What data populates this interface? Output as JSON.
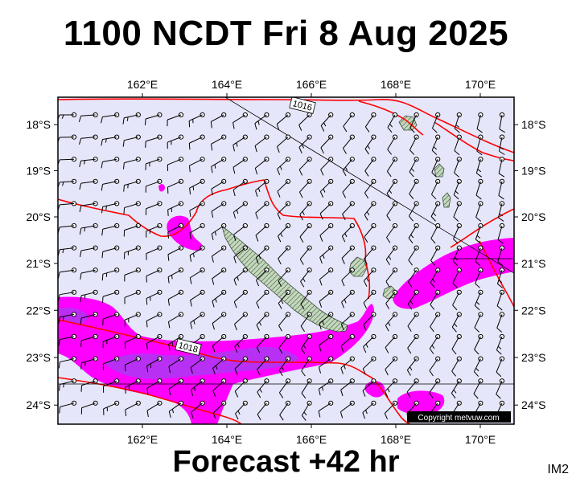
{
  "header": {
    "title": "1100 NCDT Fri 8 Aug 2025"
  },
  "footer": {
    "forecast": "Forecast +42 hr",
    "code": "IM2"
  },
  "map": {
    "projection": "mercator",
    "lon_range": [
      160.0,
      170.8
    ],
    "lat_range": [
      -24.4,
      -17.4
    ],
    "background_color": "#e6e6fa",
    "land_color": "#c9d9c0",
    "isobar_color": "#ff0000",
    "rain_colors": {
      "light": "#ff00ff",
      "heavy": "#a040f0"
    },
    "copyright": "Copyright metvuw.com",
    "lon_ticks": [
      {
        "value": 162,
        "label": "162°E"
      },
      {
        "value": 164,
        "label": "164°E"
      },
      {
        "value": 166,
        "label": "166°E"
      },
      {
        "value": 168,
        "label": "168°E"
      },
      {
        "value": 170,
        "label": "170°E"
      }
    ],
    "lat_ticks": [
      {
        "value": -18,
        "label": "18°S"
      },
      {
        "value": -19,
        "label": "19°S"
      },
      {
        "value": -20,
        "label": "20°S"
      },
      {
        "value": -21,
        "label": "21°S"
      },
      {
        "value": -22,
        "label": "22°S"
      },
      {
        "value": -23,
        "label": "23°S"
      },
      {
        "value": -24,
        "label": "24°S"
      }
    ],
    "isobar_labels": [
      {
        "text": "1016",
        "lon": 166.2,
        "lat": -17.6
      },
      {
        "text": "1018",
        "lon": 163.0,
        "lat": -22.8
      }
    ]
  }
}
